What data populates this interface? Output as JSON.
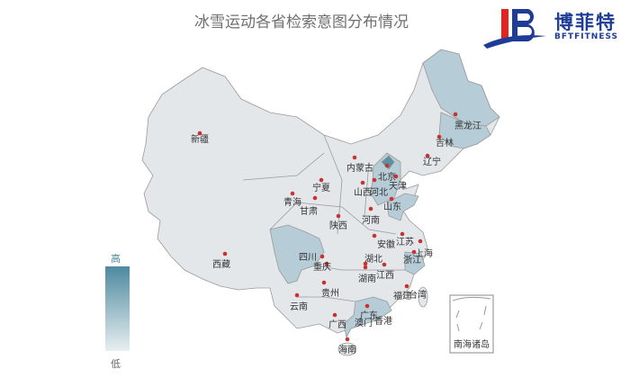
{
  "title": "冰雪运动各省检索意图分布情况",
  "logo": {
    "name": "博菲特",
    "sub": "BFTFITNESS"
  },
  "legend": {
    "high": "高",
    "low": "低",
    "color_high": "#4e8aa0",
    "color_low": "#e8eef0"
  },
  "colors": {
    "base": "#e3e7ea",
    "medium": "#b6ccd6",
    "high": "#5b8fa3",
    "dot": "#c83232",
    "border": "#9a9a9a"
  },
  "provinces": [
    {
      "name": "新疆",
      "level": "low"
    },
    {
      "name": "西藏",
      "level": "low"
    },
    {
      "name": "青海",
      "level": "low"
    },
    {
      "name": "甘肃",
      "level": "low"
    },
    {
      "name": "宁夏",
      "level": "low"
    },
    {
      "name": "内蒙古",
      "level": "low"
    },
    {
      "name": "陕西",
      "level": "low"
    },
    {
      "name": "山西",
      "level": "low"
    },
    {
      "name": "河北",
      "level": "medium"
    },
    {
      "name": "北京",
      "level": "high"
    },
    {
      "name": "天津",
      "level": "medium"
    },
    {
      "name": "山东",
      "level": "medium"
    },
    {
      "name": "河南",
      "level": "low"
    },
    {
      "name": "辽宁",
      "level": "low"
    },
    {
      "name": "吉林",
      "level": "medium"
    },
    {
      "name": "黑龙江",
      "level": "medium"
    },
    {
      "name": "安徽",
      "level": "low"
    },
    {
      "name": "江苏",
      "level": "low"
    },
    {
      "name": "上海",
      "level": "low"
    },
    {
      "name": "浙江",
      "level": "medium"
    },
    {
      "name": "四川",
      "level": "medium"
    },
    {
      "name": "重庆",
      "level": "low"
    },
    {
      "name": "湖北",
      "level": "low"
    },
    {
      "name": "贵州",
      "level": "low"
    },
    {
      "name": "湖南",
      "level": "low"
    },
    {
      "name": "江西",
      "level": "low"
    },
    {
      "name": "云南",
      "level": "low"
    },
    {
      "name": "广西",
      "level": "low"
    },
    {
      "name": "广东",
      "level": "medium"
    },
    {
      "name": "福建",
      "level": "low"
    },
    {
      "name": "台湾",
      "level": "low"
    },
    {
      "name": "澳门",
      "level": "low"
    },
    {
      "name": "香港",
      "level": "low"
    },
    {
      "name": "海南",
      "level": "low"
    }
  ],
  "inset_label": "南海诸岛"
}
